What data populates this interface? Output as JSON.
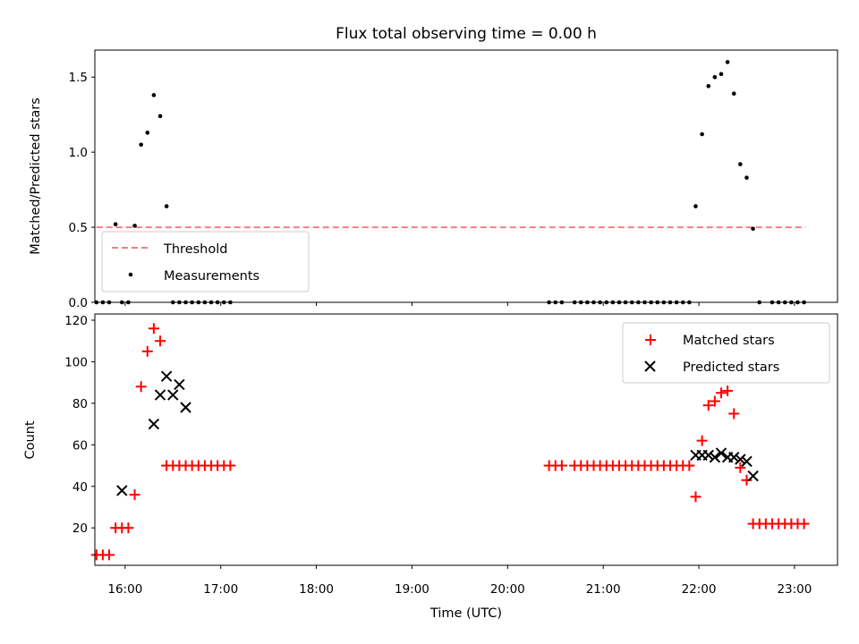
{
  "chart_data": [
    {
      "type": "scatter",
      "title": "Flux total observing time = 0.00 h",
      "ylabel": "Matched/Predicted stars",
      "xlabel": "",
      "xlim": [
        "15:41",
        "23:27"
      ],
      "ylim": [
        0,
        1.68
      ],
      "yticks": [
        0.0,
        0.5,
        1.0,
        1.5
      ],
      "ytick_labels": [
        "0.0",
        "0.5",
        "1.0",
        "1.5"
      ],
      "legend_position": "lower-left",
      "threshold": {
        "name": "Threshold",
        "value": 0.5,
        "x_range": [
          "15:42",
          "23:07"
        ],
        "color": "#f08080",
        "style": "dashed"
      },
      "series": [
        {
          "name": "Measurements",
          "color": "#000000",
          "marker": "dot",
          "x": [
            "15:42",
            "15:46",
            "15:50",
            "15:54",
            "15:58",
            "16:02",
            "16:06",
            "16:10",
            "16:14",
            "16:18",
            "16:22",
            "16:26",
            "16:30",
            "16:34",
            "16:38",
            "16:42",
            "16:46",
            "16:50",
            "16:54",
            "16:58",
            "17:02",
            "17:06",
            "20:26",
            "20:30",
            "20:34",
            "20:42",
            "20:46",
            "20:50",
            "20:54",
            "20:58",
            "21:02",
            "21:06",
            "21:10",
            "21:14",
            "21:18",
            "21:22",
            "21:26",
            "21:30",
            "21:34",
            "21:38",
            "21:42",
            "21:46",
            "21:50",
            "21:54",
            "21:58",
            "22:02",
            "22:06",
            "22:10",
            "22:14",
            "22:18",
            "22:22",
            "22:26",
            "22:30",
            "22:34",
            "22:38",
            "22:46",
            "22:50",
            "22:54",
            "22:58",
            "23:02",
            "23:06"
          ],
          "y": [
            0,
            0,
            0,
            0.52,
            0,
            0,
            0.51,
            1.05,
            1.13,
            1.38,
            1.24,
            0.64,
            0,
            0,
            0,
            0,
            0,
            0,
            0,
            0,
            0,
            0,
            0,
            0,
            0,
            0,
            0,
            0,
            0,
            0,
            0,
            0,
            0,
            0,
            0,
            0,
            0,
            0,
            0,
            0,
            0,
            0,
            0,
            0,
            0.64,
            1.12,
            1.44,
            1.5,
            1.52,
            1.6,
            1.39,
            0.92,
            0.83,
            0.49,
            0,
            0,
            0,
            0,
            0,
            0,
            0
          ]
        }
      ]
    },
    {
      "type": "scatter",
      "title": "",
      "xlabel": "Time (UTC)",
      "ylabel": "Count",
      "xlim": [
        "15:41",
        "23:27"
      ],
      "ylim": [
        2,
        123
      ],
      "xticks": [
        "16:00",
        "17:00",
        "18:00",
        "19:00",
        "20:00",
        "21:00",
        "22:00",
        "23:00"
      ],
      "yticks": [
        20,
        40,
        60,
        80,
        100,
        120
      ],
      "ytick_labels": [
        "20",
        "40",
        "60",
        "80",
        "100",
        "120"
      ],
      "legend_position": "upper-right",
      "series": [
        {
          "name": "Matched stars",
          "color": "#ff0000",
          "marker": "plus",
          "x": [
            "15:42",
            "15:46",
            "15:50",
            "15:54",
            "15:58",
            "16:02",
            "16:06",
            "16:10",
            "16:14",
            "16:18",
            "16:22",
            "16:26",
            "16:30",
            "16:34",
            "16:38",
            "16:42",
            "16:46",
            "16:50",
            "16:54",
            "16:58",
            "17:02",
            "17:06",
            "20:26",
            "20:30",
            "20:34",
            "20:42",
            "20:46",
            "20:50",
            "20:54",
            "20:58",
            "21:02",
            "21:06",
            "21:10",
            "21:14",
            "21:18",
            "21:22",
            "21:26",
            "21:30",
            "21:34",
            "21:38",
            "21:42",
            "21:46",
            "21:50",
            "21:54",
            "21:58",
            "22:02",
            "22:06",
            "22:10",
            "22:14",
            "22:18",
            "22:22",
            "22:26",
            "22:30",
            "22:34",
            "22:38",
            "22:42",
            "22:46",
            "22:50",
            "22:54",
            "22:58",
            "23:02",
            "23:06"
          ],
          "y": [
            7,
            7,
            7,
            20,
            20,
            20,
            36,
            88,
            105,
            116,
            110,
            50,
            50,
            50,
            50,
            50,
            50,
            50,
            50,
            50,
            50,
            50,
            50,
            50,
            50,
            50,
            50,
            50,
            50,
            50,
            50,
            50,
            50,
            50,
            50,
            50,
            50,
            50,
            50,
            50,
            50,
            50,
            50,
            50,
            35,
            62,
            79,
            81,
            85,
            86,
            75,
            49,
            43,
            22,
            22,
            22,
            22,
            22,
            22,
            22,
            22,
            22
          ]
        },
        {
          "name": "Predicted stars",
          "color": "#000000",
          "marker": "x",
          "x": [
            "15:58",
            "16:18",
            "16:22",
            "16:26",
            "16:30",
            "16:34",
            "16:38",
            "21:58",
            "22:02",
            "22:06",
            "22:10",
            "22:14",
            "22:18",
            "22:22",
            "22:26",
            "22:30",
            "22:34"
          ],
          "y": [
            38,
            70,
            84,
            93,
            84,
            89,
            78,
            55,
            55,
            55,
            54,
            56,
            54,
            54,
            53,
            52,
            45
          ]
        }
      ]
    }
  ]
}
